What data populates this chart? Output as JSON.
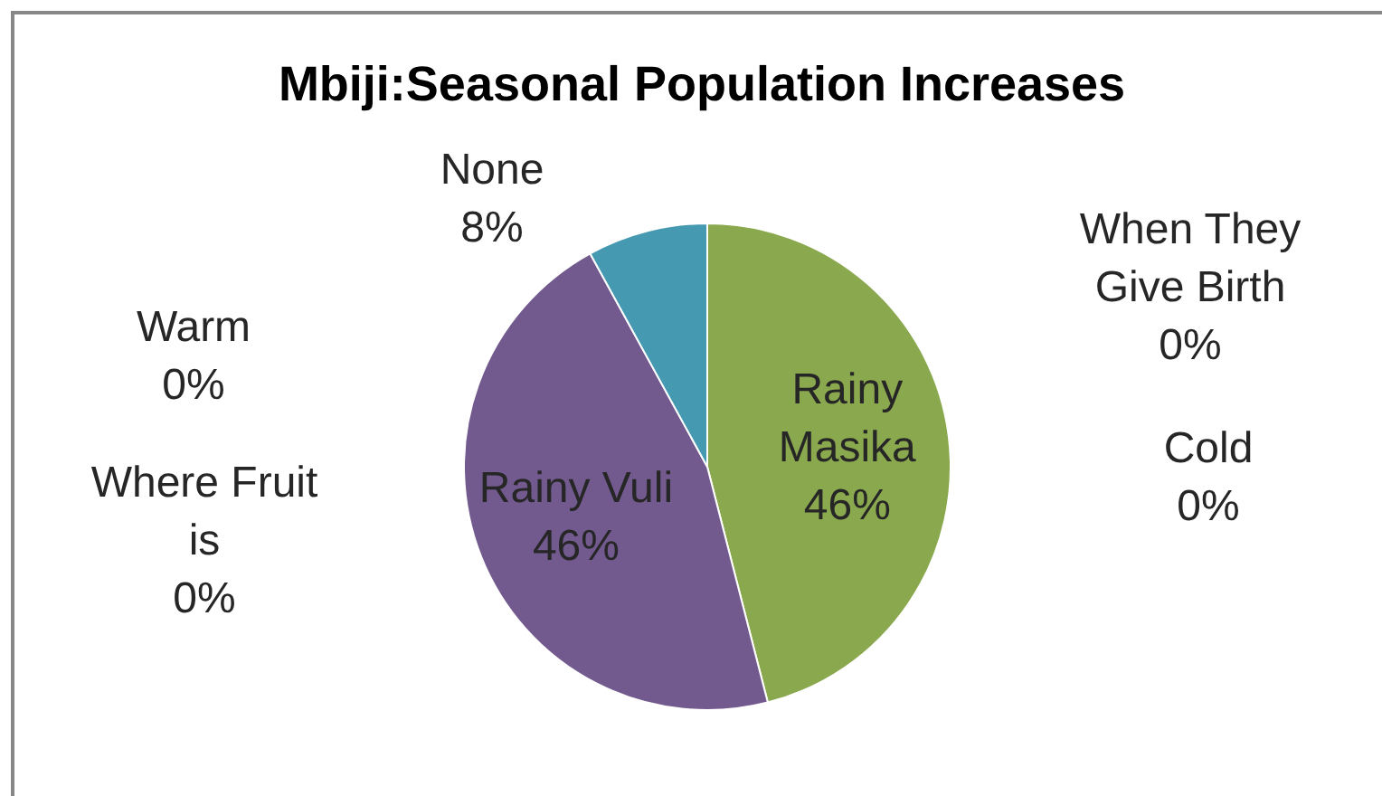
{
  "chart_data": {
    "type": "pie",
    "title": "Mbiji:Seasonal Population Increases",
    "categories": [
      "When They Give Birth",
      "Cold",
      "Rainy Masika",
      "Rainy Vuli",
      "None",
      "Warm",
      "Where Fruit is"
    ],
    "values": [
      0,
      0,
      46,
      46,
      8,
      0,
      0
    ],
    "colors": [
      "#4f81bd",
      "#c0504d",
      "#8aa84e",
      "#725a8f",
      "#4599b0",
      "#f79646",
      "#2c4d75"
    ],
    "value_labels": [
      "0%",
      "0%",
      "46%",
      "46%",
      "8%",
      "0%",
      "0%"
    ]
  }
}
